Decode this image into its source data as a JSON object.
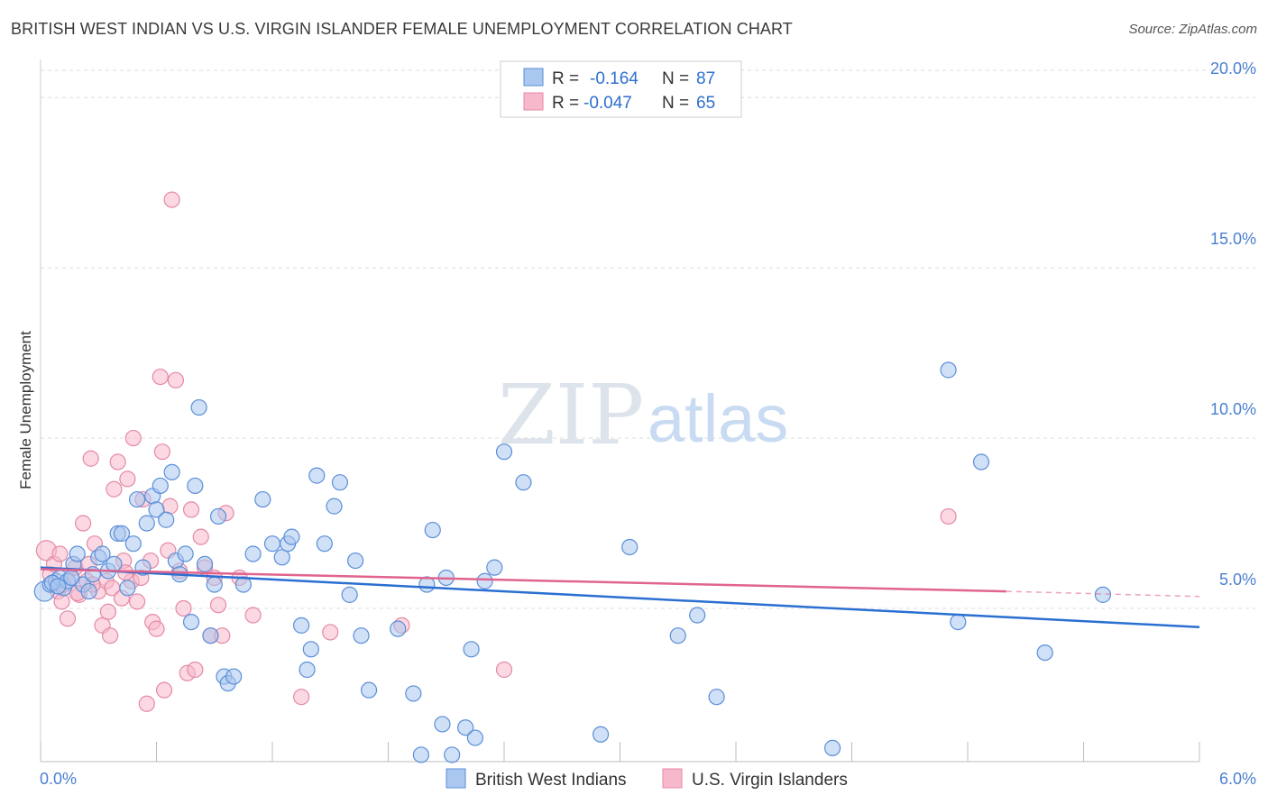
{
  "title": "BRITISH WEST INDIAN VS U.S. VIRGIN ISLANDER FEMALE UNEMPLOYMENT CORRELATION CHART",
  "source": "Source: ZipAtlas.com",
  "watermark": {
    "zip": "ZIP",
    "atlas": "atlas"
  },
  "colors": {
    "blue_fill": "#a9c7ef",
    "blue_stroke": "#5b8fd8",
    "blue_line": "#2a6fd1",
    "pink_fill": "#f7b8cb",
    "pink_stroke": "#e48aa6",
    "pink_line": "#e0648e",
    "grid": "#dcdcdc",
    "tick_text": "#4a7fd0"
  },
  "legend": {
    "rows": [
      {
        "r_label": "R =",
        "r_value": "-0.164",
        "n_label": "N =",
        "n_value": "87",
        "series": "blue"
      },
      {
        "r_label": "R =",
        "r_value": "-0.047",
        "n_label": "N =",
        "n_value": "65",
        "series": "pink"
      }
    ]
  },
  "chart_data": {
    "type": "scatter",
    "title": "BRITISH WEST INDIAN VS U.S. VIRGIN ISLANDER FEMALE UNEMPLOYMENT CORRELATION CHART",
    "xlabel": "",
    "ylabel": "Female Unemployment",
    "xlim": [
      0.0,
      6.0
    ],
    "ylim": [
      0.5,
      20.8
    ],
    "x_tick_labels": [
      "0.0%",
      "6.0%"
    ],
    "y_ticks": [
      5.0,
      10.0,
      15.0,
      20.0
    ],
    "y_tick_labels": [
      "5.0%",
      "10.0%",
      "15.0%",
      "20.0%"
    ],
    "grid": true,
    "series": [
      {
        "name": "British West Indians",
        "color": "#a9c7ef",
        "trend": {
          "x0": 0.0,
          "y0": 6.2,
          "x1": 6.0,
          "y1": 4.45
        },
        "points": [
          [
            0.02,
            5.5
          ],
          [
            0.05,
            5.7
          ],
          [
            0.08,
            5.8
          ],
          [
            0.1,
            5.9
          ],
          [
            0.12,
            5.6
          ],
          [
            0.14,
            5.8
          ],
          [
            0.17,
            6.3
          ],
          [
            0.19,
            6.6
          ],
          [
            0.22,
            5.7
          ],
          [
            0.25,
            5.5
          ],
          [
            0.27,
            6.0
          ],
          [
            0.3,
            6.5
          ],
          [
            0.32,
            6.6
          ],
          [
            0.35,
            6.1
          ],
          [
            0.38,
            6.3
          ],
          [
            0.4,
            7.2
          ],
          [
            0.42,
            7.2
          ],
          [
            0.45,
            5.6
          ],
          [
            0.48,
            6.9
          ],
          [
            0.5,
            8.2
          ],
          [
            0.53,
            6.2
          ],
          [
            0.55,
            7.5
          ],
          [
            0.58,
            8.3
          ],
          [
            0.6,
            7.9
          ],
          [
            0.62,
            8.6
          ],
          [
            0.65,
            7.6
          ],
          [
            0.68,
            9.0
          ],
          [
            0.7,
            6.4
          ],
          [
            0.72,
            6.0
          ],
          [
            0.75,
            6.6
          ],
          [
            0.78,
            4.6
          ],
          [
            0.8,
            8.6
          ],
          [
            0.82,
            10.9
          ],
          [
            0.85,
            6.3
          ],
          [
            0.88,
            4.2
          ],
          [
            0.9,
            5.7
          ],
          [
            0.92,
            7.7
          ],
          [
            0.95,
            3.0
          ],
          [
            0.97,
            2.8
          ],
          [
            1.0,
            3.0
          ],
          [
            1.05,
            5.7
          ],
          [
            1.1,
            6.6
          ],
          [
            1.15,
            8.2
          ],
          [
            1.2,
            6.9
          ],
          [
            1.25,
            6.5
          ],
          [
            1.28,
            6.9
          ],
          [
            1.3,
            7.1
          ],
          [
            1.35,
            4.5
          ],
          [
            1.38,
            3.2
          ],
          [
            1.4,
            3.8
          ],
          [
            1.43,
            8.9
          ],
          [
            1.47,
            6.9
          ],
          [
            1.52,
            8.0
          ],
          [
            1.55,
            8.7
          ],
          [
            1.6,
            5.4
          ],
          [
            1.63,
            6.4
          ],
          [
            1.66,
            4.2
          ],
          [
            1.7,
            2.6
          ],
          [
            1.85,
            4.4
          ],
          [
            1.93,
            2.5
          ],
          [
            1.97,
            0.7
          ],
          [
            2.0,
            5.7
          ],
          [
            2.03,
            7.3
          ],
          [
            2.08,
            1.6
          ],
          [
            2.1,
            5.9
          ],
          [
            2.13,
            0.7
          ],
          [
            2.2,
            1.5
          ],
          [
            2.23,
            3.8
          ],
          [
            2.25,
            1.2
          ],
          [
            2.3,
            5.8
          ],
          [
            2.35,
            6.2
          ],
          [
            2.4,
            9.6
          ],
          [
            2.5,
            8.7
          ],
          [
            2.9,
            1.3
          ],
          [
            3.05,
            6.8
          ],
          [
            3.3,
            4.2
          ],
          [
            3.4,
            4.8
          ],
          [
            3.5,
            2.4
          ],
          [
            4.1,
            0.9
          ],
          [
            4.7,
            12.0
          ],
          [
            4.75,
            4.6
          ],
          [
            4.87,
            9.3
          ],
          [
            5.2,
            3.7
          ],
          [
            5.5,
            5.4
          ],
          [
            0.06,
            5.75
          ],
          [
            0.16,
            5.9
          ],
          [
            0.09,
            5.65
          ]
        ]
      },
      {
        "name": "U.S. Virgin Islanders",
        "color": "#f7b8cb",
        "trend": {
          "x0": 0.0,
          "y0": 6.15,
          "x1": 5.0,
          "y1": 5.5,
          "dash_to_x": 6.0,
          "dash_to_y": 5.35
        },
        "points": [
          [
            0.03,
            6.7
          ],
          [
            0.05,
            6.0
          ],
          [
            0.07,
            6.3
          ],
          [
            0.09,
            5.5
          ],
          [
            0.1,
            6.6
          ],
          [
            0.12,
            5.7
          ],
          [
            0.14,
            4.7
          ],
          [
            0.16,
            5.9
          ],
          [
            0.18,
            6.2
          ],
          [
            0.2,
            5.4
          ],
          [
            0.22,
            7.5
          ],
          [
            0.24,
            5.8
          ],
          [
            0.25,
            6.3
          ],
          [
            0.26,
            9.4
          ],
          [
            0.28,
            6.9
          ],
          [
            0.3,
            5.5
          ],
          [
            0.32,
            4.5
          ],
          [
            0.34,
            5.8
          ],
          [
            0.35,
            4.9
          ],
          [
            0.36,
            4.2
          ],
          [
            0.37,
            5.6
          ],
          [
            0.38,
            8.5
          ],
          [
            0.4,
            9.3
          ],
          [
            0.42,
            5.3
          ],
          [
            0.43,
            6.4
          ],
          [
            0.45,
            8.8
          ],
          [
            0.47,
            5.8
          ],
          [
            0.48,
            10.0
          ],
          [
            0.5,
            5.2
          ],
          [
            0.52,
            5.9
          ],
          [
            0.53,
            8.2
          ],
          [
            0.55,
            2.2
          ],
          [
            0.57,
            6.4
          ],
          [
            0.58,
            4.6
          ],
          [
            0.6,
            4.4
          ],
          [
            0.62,
            11.8
          ],
          [
            0.63,
            9.6
          ],
          [
            0.64,
            2.6
          ],
          [
            0.67,
            8.0
          ],
          [
            0.68,
            17.0
          ],
          [
            0.7,
            11.7
          ],
          [
            0.72,
            6.1
          ],
          [
            0.74,
            5.0
          ],
          [
            0.76,
            3.1
          ],
          [
            0.78,
            7.9
          ],
          [
            0.8,
            3.2
          ],
          [
            0.83,
            7.1
          ],
          [
            0.85,
            6.2
          ],
          [
            0.88,
            4.2
          ],
          [
            0.9,
            5.9
          ],
          [
            0.92,
            5.1
          ],
          [
            0.94,
            4.2
          ],
          [
            0.96,
            7.8
          ],
          [
            1.03,
            5.9
          ],
          [
            1.1,
            4.8
          ],
          [
            1.35,
            2.4
          ],
          [
            1.5,
            4.3
          ],
          [
            1.87,
            4.5
          ],
          [
            2.4,
            3.2
          ],
          [
            4.7,
            7.7
          ],
          [
            0.11,
            5.2
          ],
          [
            0.19,
            5.45
          ],
          [
            0.27,
            5.7
          ],
          [
            0.44,
            6.05
          ],
          [
            0.66,
            6.7
          ]
        ]
      }
    ]
  },
  "bottom_legend": [
    {
      "label": "British West Indians",
      "series": "blue"
    },
    {
      "label": "U.S. Virgin Islanders",
      "series": "pink"
    }
  ]
}
